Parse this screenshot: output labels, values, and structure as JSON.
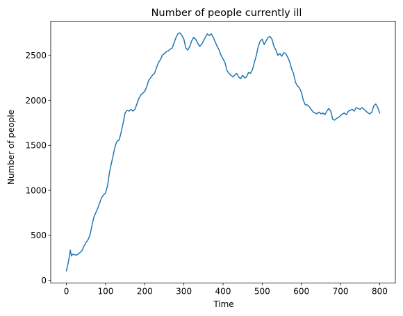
{
  "chart_data": {
    "type": "line",
    "title": "Number of people currently ill",
    "xlabel": "Time",
    "ylabel": "Number of people",
    "xlim": [
      -40,
      840
    ],
    "ylim": [
      -30,
      2880
    ],
    "xticks": [
      0,
      100,
      200,
      300,
      400,
      500,
      600,
      700,
      800
    ],
    "yticks": [
      0,
      500,
      1000,
      1500,
      2000,
      2500
    ],
    "grid": false,
    "legend": "none",
    "colors": {
      "line": "#1f77b4",
      "axes": "#000000",
      "background": "#ffffff"
    },
    "series": [
      {
        "points": [
          [
            0,
            105
          ],
          [
            4,
            180
          ],
          [
            7,
            250
          ],
          [
            10,
            335
          ],
          [
            13,
            270
          ],
          [
            16,
            290
          ],
          [
            20,
            285
          ],
          [
            25,
            280
          ],
          [
            30,
            290
          ],
          [
            35,
            310
          ],
          [
            40,
            330
          ],
          [
            45,
            380
          ],
          [
            50,
            420
          ],
          [
            55,
            450
          ],
          [
            60,
            500
          ],
          [
            65,
            600
          ],
          [
            70,
            700
          ],
          [
            75,
            750
          ],
          [
            80,
            800
          ],
          [
            85,
            860
          ],
          [
            90,
            920
          ],
          [
            95,
            950
          ],
          [
            100,
            970
          ],
          [
            105,
            1050
          ],
          [
            110,
            1200
          ],
          [
            115,
            1300
          ],
          [
            120,
            1400
          ],
          [
            125,
            1500
          ],
          [
            130,
            1550
          ],
          [
            135,
            1560
          ],
          [
            140,
            1650
          ],
          [
            145,
            1750
          ],
          [
            150,
            1860
          ],
          [
            155,
            1890
          ],
          [
            160,
            1880
          ],
          [
            165,
            1900
          ],
          [
            170,
            1880
          ],
          [
            175,
            1900
          ],
          [
            180,
            1960
          ],
          [
            185,
            2020
          ],
          [
            190,
            2060
          ],
          [
            195,
            2080
          ],
          [
            200,
            2100
          ],
          [
            205,
            2150
          ],
          [
            210,
            2220
          ],
          [
            215,
            2250
          ],
          [
            220,
            2280
          ],
          [
            225,
            2300
          ],
          [
            230,
            2360
          ],
          [
            235,
            2420
          ],
          [
            240,
            2450
          ],
          [
            245,
            2500
          ],
          [
            250,
            2520
          ],
          [
            255,
            2540
          ],
          [
            260,
            2550
          ],
          [
            265,
            2570
          ],
          [
            270,
            2580
          ],
          [
            275,
            2640
          ],
          [
            280,
            2700
          ],
          [
            285,
            2740
          ],
          [
            290,
            2750
          ],
          [
            295,
            2720
          ],
          [
            300,
            2680
          ],
          [
            305,
            2580
          ],
          [
            310,
            2560
          ],
          [
            315,
            2600
          ],
          [
            320,
            2660
          ],
          [
            325,
            2700
          ],
          [
            330,
            2680
          ],
          [
            335,
            2640
          ],
          [
            340,
            2600
          ],
          [
            345,
            2620
          ],
          [
            350,
            2660
          ],
          [
            355,
            2700
          ],
          [
            360,
            2740
          ],
          [
            365,
            2720
          ],
          [
            370,
            2740
          ],
          [
            375,
            2700
          ],
          [
            380,
            2650
          ],
          [
            385,
            2600
          ],
          [
            390,
            2560
          ],
          [
            395,
            2500
          ],
          [
            400,
            2460
          ],
          [
            405,
            2420
          ],
          [
            410,
            2330
          ],
          [
            415,
            2300
          ],
          [
            420,
            2280
          ],
          [
            425,
            2260
          ],
          [
            430,
            2280
          ],
          [
            435,
            2300
          ],
          [
            440,
            2260
          ],
          [
            445,
            2240
          ],
          [
            450,
            2280
          ],
          [
            455,
            2250
          ],
          [
            460,
            2260
          ],
          [
            465,
            2310
          ],
          [
            470,
            2300
          ],
          [
            475,
            2340
          ],
          [
            480,
            2420
          ],
          [
            485,
            2500
          ],
          [
            490,
            2600
          ],
          [
            495,
            2660
          ],
          [
            500,
            2680
          ],
          [
            505,
            2620
          ],
          [
            510,
            2660
          ],
          [
            515,
            2700
          ],
          [
            520,
            2710
          ],
          [
            525,
            2680
          ],
          [
            530,
            2600
          ],
          [
            535,
            2560
          ],
          [
            540,
            2500
          ],
          [
            545,
            2520
          ],
          [
            550,
            2490
          ],
          [
            555,
            2530
          ],
          [
            560,
            2520
          ],
          [
            565,
            2480
          ],
          [
            570,
            2430
          ],
          [
            575,
            2350
          ],
          [
            580,
            2300
          ],
          [
            585,
            2200
          ],
          [
            590,
            2160
          ],
          [
            595,
            2140
          ],
          [
            600,
            2090
          ],
          [
            605,
            2000
          ],
          [
            610,
            1950
          ],
          [
            615,
            1950
          ],
          [
            620,
            1930
          ],
          [
            625,
            1900
          ],
          [
            630,
            1870
          ],
          [
            635,
            1860
          ],
          [
            640,
            1850
          ],
          [
            645,
            1870
          ],
          [
            650,
            1850
          ],
          [
            655,
            1860
          ],
          [
            660,
            1840
          ],
          [
            665,
            1880
          ],
          [
            670,
            1910
          ],
          [
            675,
            1880
          ],
          [
            680,
            1790
          ],
          [
            685,
            1780
          ],
          [
            690,
            1800
          ],
          [
            695,
            1810
          ],
          [
            700,
            1830
          ],
          [
            705,
            1850
          ],
          [
            710,
            1860
          ],
          [
            715,
            1840
          ],
          [
            720,
            1880
          ],
          [
            725,
            1890
          ],
          [
            730,
            1900
          ],
          [
            735,
            1880
          ],
          [
            740,
            1920
          ],
          [
            745,
            1910
          ],
          [
            750,
            1900
          ],
          [
            755,
            1920
          ],
          [
            760,
            1900
          ],
          [
            765,
            1880
          ],
          [
            770,
            1860
          ],
          [
            775,
            1850
          ],
          [
            780,
            1870
          ],
          [
            785,
            1940
          ],
          [
            790,
            1960
          ],
          [
            795,
            1920
          ],
          [
            800,
            1860
          ]
        ]
      }
    ]
  }
}
